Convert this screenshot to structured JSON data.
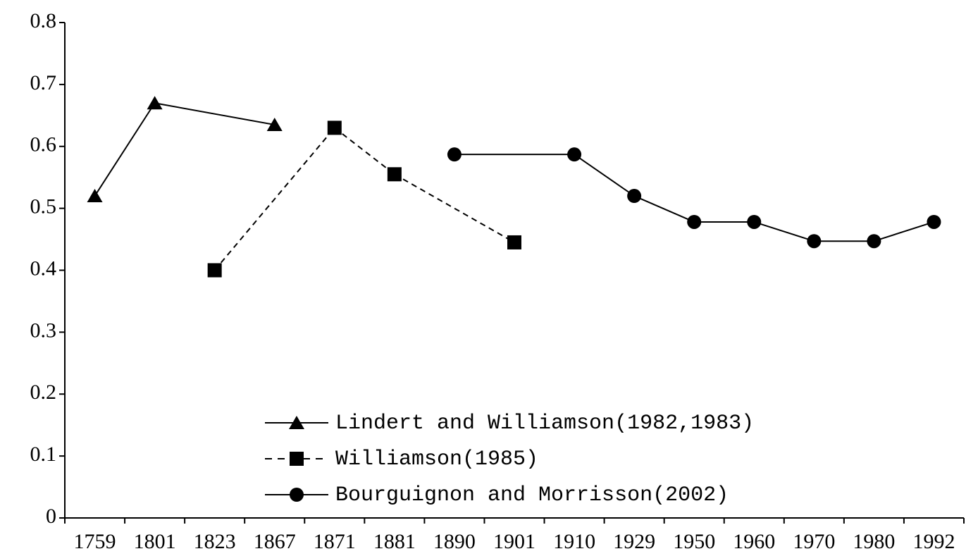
{
  "chart_data": {
    "type": "line",
    "categories": [
      "1759",
      "1801",
      "1823",
      "1867",
      "1871",
      "1881",
      "1890",
      "1901",
      "1910",
      "1929",
      "1950",
      "1960",
      "1970",
      "1980",
      "1992"
    ],
    "series": [
      {
        "name": "Lindert and Williamson(1982,1983)",
        "color": "#000000",
        "marker": "triangle",
        "dash": false,
        "values": [
          0.52,
          0.67,
          null,
          0.635,
          null,
          null,
          null,
          null,
          null,
          null,
          null,
          null,
          null,
          null,
          null
        ]
      },
      {
        "name": "Williamson(1985)",
        "color": "#000000",
        "marker": "square",
        "dash": true,
        "values": [
          null,
          null,
          0.4,
          null,
          0.63,
          0.555,
          null,
          0.445,
          null,
          null,
          null,
          null,
          null,
          null,
          null
        ]
      },
      {
        "name": "Bourguignon and Morrisson(2002)",
        "color": "#000000",
        "marker": "circle",
        "dash": false,
        "values": [
          null,
          null,
          null,
          null,
          null,
          null,
          0.587,
          null,
          0.587,
          0.52,
          0.478,
          0.478,
          0.447,
          0.447,
          0.478
        ]
      }
    ],
    "ylim": [
      0,
      0.8
    ],
    "yticks": [
      0,
      0.1,
      0.2,
      0.3,
      0.4,
      0.5,
      0.6,
      0.7,
      0.8
    ],
    "grid": false
  }
}
